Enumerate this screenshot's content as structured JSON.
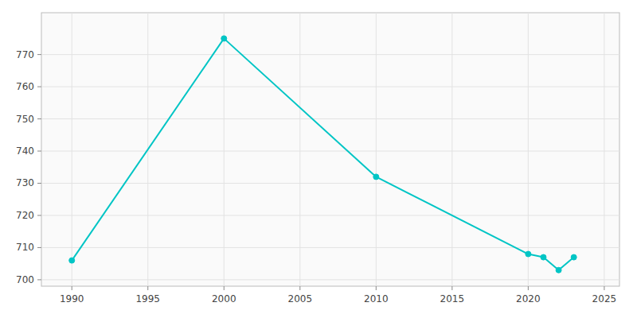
{
  "chart_data": {
    "type": "line",
    "x": [
      1990,
      2000,
      2010,
      2020,
      2021,
      2022,
      2023
    ],
    "values": [
      706,
      775,
      732,
      708,
      707,
      703,
      707
    ],
    "color": "#00C5C5",
    "marker": "circle",
    "xlim": [
      1988,
      2026
    ],
    "ylim": [
      698,
      783
    ],
    "xticks": [
      1990,
      1995,
      2000,
      2005,
      2010,
      2015,
      2020,
      2025
    ],
    "yticks": [
      700,
      710,
      720,
      730,
      740,
      750,
      760,
      770
    ],
    "grid": true
  }
}
